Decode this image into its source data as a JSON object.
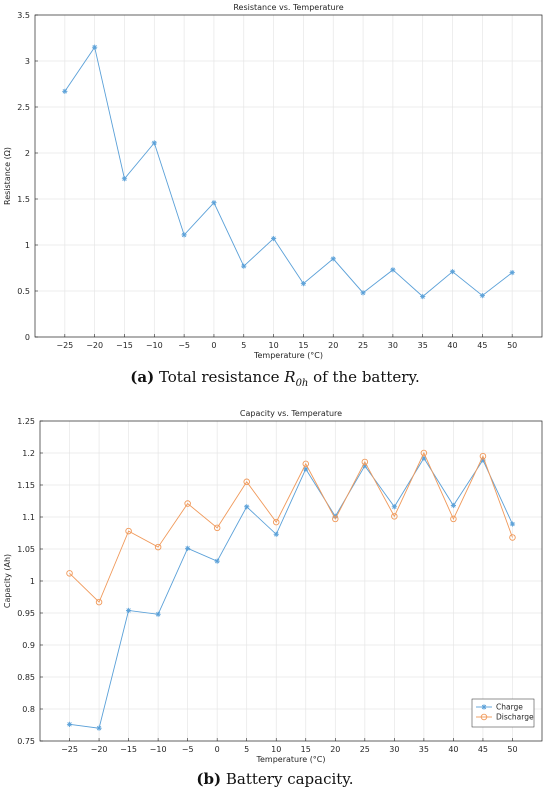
{
  "chart_data": [
    {
      "type": "line",
      "title": "Resistance vs.  Temperature",
      "xlabel": "Temperature (°C)",
      "ylabel": "Resistance (Ω)",
      "x": [
        -25,
        -20,
        -15,
        -10,
        -5,
        0,
        5,
        10,
        15,
        20,
        25,
        30,
        35,
        40,
        45,
        50
      ],
      "xticks": [
        "−25",
        "−20",
        "−15",
        "−10",
        "−5",
        "0",
        "5",
        "10",
        "15",
        "20",
        "25",
        "30",
        "35",
        "40",
        "45",
        "50"
      ],
      "yticks": [
        "0",
        "0.5",
        "1",
        "1.5",
        "2",
        "2.5",
        "3",
        "3.5"
      ],
      "xlim": [
        -30,
        55
      ],
      "ylim": [
        0,
        3.5
      ],
      "grid": true,
      "series": [
        {
          "values": [
            2.67,
            3.15,
            1.72,
            2.11,
            1.11,
            1.46,
            0.77,
            1.07,
            0.58,
            0.85,
            0.48,
            0.73,
            0.44,
            0.71,
            0.45,
            0.7
          ],
          "color": "#5aa0d8",
          "marker": "asterisk"
        }
      ]
    },
    {
      "type": "line",
      "title": "Capacity vs.  Temperature",
      "xlabel": "Temperature (°C)",
      "ylabel": "Capacity (Ah)",
      "x": [
        -25,
        -20,
        -15,
        -10,
        -5,
        0,
        5,
        10,
        15,
        20,
        25,
        30,
        35,
        40,
        45,
        50
      ],
      "xticks": [
        "−25",
        "−20",
        "−15",
        "−10",
        "−5",
        "0",
        "5",
        "10",
        "15",
        "20",
        "25",
        "30",
        "35",
        "40",
        "45",
        "50"
      ],
      "yticks": [
        "0.75",
        "0.8",
        "0.85",
        "0.9",
        "0.95",
        "1",
        "1.05",
        "1.1",
        "1.15",
        "1.2",
        "1.25"
      ],
      "xlim": [
        -30,
        55
      ],
      "ylim": [
        0.75,
        1.25
      ],
      "grid": true,
      "legend_position": "bottom-right",
      "series": [
        {
          "name": "Charge",
          "values": [
            0.776,
            0.77,
            0.954,
            0.948,
            1.051,
            1.031,
            1.116,
            1.073,
            1.175,
            1.101,
            1.18,
            1.116,
            1.192,
            1.118,
            1.189,
            1.089
          ],
          "color": "#5aa0d8",
          "marker": "asterisk"
        },
        {
          "name": "Discharge",
          "values": [
            1.012,
            0.967,
            1.078,
            1.053,
            1.121,
            1.083,
            1.155,
            1.092,
            1.183,
            1.097,
            1.186,
            1.101,
            1.2,
            1.097,
            1.195,
            1.068
          ],
          "color": "#f0995a",
          "marker": "circle"
        }
      ]
    }
  ],
  "captions": {
    "a": {
      "label": "(a)",
      "text_before": " Total resistance ",
      "symbol": "R",
      "subscript": "0h",
      "text_after": " of the battery."
    },
    "b": {
      "label": "(b)",
      "text": " Battery capacity."
    }
  }
}
